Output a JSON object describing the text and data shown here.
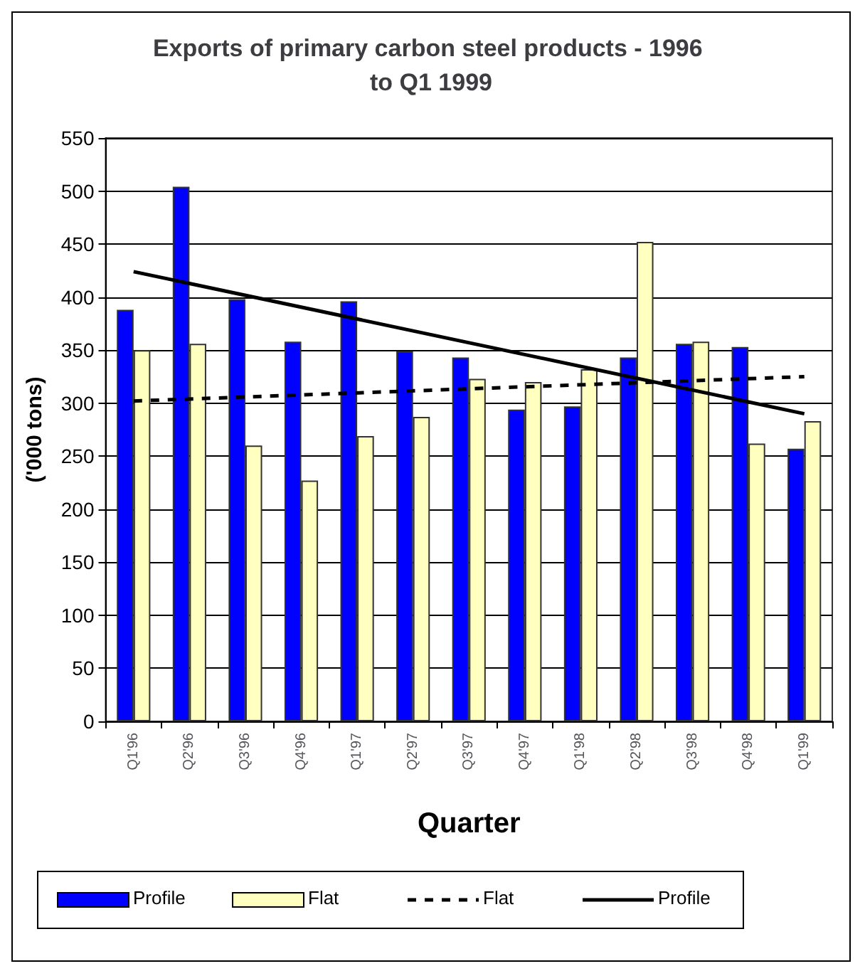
{
  "chart_data": {
    "type": "bar",
    "title": "Exports of primary carbon steel products - 1996 to Q1 1999",
    "xlabel": "Quarter",
    "ylabel": "('000 tons)",
    "categories": [
      "Q1'96",
      "Q2'96",
      "Q3'96",
      "Q4'96",
      "Q1'97",
      "Q2'97",
      "Q3'97",
      "Q4'97",
      "Q1'98",
      "Q2'98",
      "Q3'98",
      "Q4'98",
      "Q1'99"
    ],
    "series": [
      {
        "name": "Profile",
        "type": "bar",
        "color": "#0000ff",
        "values": [
          388,
          504,
          398,
          358,
          396,
          349,
          343,
          294,
          297,
          343,
          356,
          353,
          257
        ]
      },
      {
        "name": "Flat",
        "type": "bar",
        "color": "#ffffc0",
        "values": [
          350,
          356,
          260,
          227,
          269,
          287,
          323,
          320,
          332,
          452,
          358,
          262,
          283
        ]
      },
      {
        "name": "Flat",
        "type": "line",
        "color": "#000000",
        "line_style": "dashed",
        "x": [
          "Q1'96",
          "Q1'99"
        ],
        "values": [
          302,
          325
        ]
      },
      {
        "name": "Profile",
        "type": "line",
        "color": "#000000",
        "line_style": "solid",
        "x": [
          "Q1'96",
          "Q1'99"
        ],
        "values": [
          424,
          290
        ]
      }
    ],
    "ylim": [
      0,
      550
    ],
    "yticks": [
      0,
      50,
      100,
      150,
      200,
      250,
      300,
      350,
      400,
      450,
      500,
      550
    ],
    "grid": "y",
    "legend": "bottom",
    "marker": "none"
  }
}
